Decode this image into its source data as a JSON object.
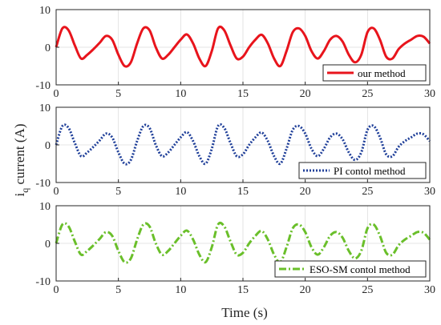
{
  "chart_data": {
    "type": "line",
    "xlabel": "Time (s)",
    "ylabel_prefix": "i",
    "ylabel_subscript": "q",
    "ylabel_suffix": " current (A)",
    "xlim": [
      0,
      30
    ],
    "ylim": [
      -10,
      10
    ],
    "xticks": [
      0,
      5,
      10,
      15,
      20,
      25,
      30
    ],
    "yticks": [
      -10,
      0,
      10
    ],
    "grid": true,
    "legend_placement": "bottom-right",
    "x": [
      0,
      0.5,
      1,
      1.5,
      2,
      2.5,
      3,
      3.5,
      4,
      4.5,
      5,
      5.5,
      6,
      6.5,
      7,
      7.5,
      8,
      8.5,
      9,
      9.5,
      10,
      10.5,
      11,
      11.5,
      12,
      12.5,
      13,
      13.5,
      14,
      14.5,
      15,
      15.5,
      16,
      16.5,
      17,
      17.5,
      18,
      18.5,
      19,
      19.5,
      20,
      20.5,
      21,
      21.5,
      22,
      22.5,
      23,
      23.5,
      24,
      24.5,
      25,
      25.5,
      26,
      26.5,
      27,
      27.5,
      28,
      28.5,
      29,
      29.5,
      30
    ],
    "series": [
      {
        "name": "our method",
        "color": "#e8141c",
        "style": "solid",
        "values": [
          0,
          5.0,
          4.5,
          0.5,
          -3.0,
          -2.0,
          -0.5,
          1.2,
          3.0,
          2.0,
          -2.0,
          -5.0,
          -4.0,
          1.0,
          5.0,
          4.5,
          0.0,
          -3.0,
          -2.0,
          0.0,
          2.0,
          3.4,
          1.0,
          -3.0,
          -5.0,
          -1.0,
          5.0,
          4.5,
          0.5,
          -3.0,
          -2.5,
          0.0,
          2.0,
          3.3,
          1.0,
          -3.0,
          -5.0,
          -1.0,
          4.0,
          5.0,
          3.0,
          -1.0,
          -3.0,
          -1.0,
          2.0,
          3.0,
          1.5,
          -2.0,
          -4.0,
          -2.0,
          4.0,
          5.0,
          2.0,
          -2.5,
          -3.0,
          -0.5,
          1.0,
          2.0,
          3.0,
          2.8,
          1.0
        ]
      },
      {
        "name": "PI contol method",
        "color": "#1f3f99",
        "style": "dotted",
        "values": [
          0,
          5.0,
          4.5,
          0.5,
          -3.0,
          -2.0,
          -0.5,
          1.2,
          3.0,
          2.0,
          -2.0,
          -5.0,
          -4.0,
          1.0,
          5.0,
          4.5,
          0.0,
          -3.0,
          -2.0,
          0.0,
          2.0,
          3.4,
          1.0,
          -3.0,
          -5.0,
          -1.0,
          5.0,
          4.5,
          0.5,
          -3.0,
          -2.5,
          0.0,
          2.0,
          3.3,
          1.0,
          -3.0,
          -5.0,
          -1.0,
          4.0,
          5.0,
          3.0,
          -1.0,
          -3.0,
          -1.0,
          2.0,
          3.0,
          1.5,
          -2.0,
          -4.0,
          -2.0,
          4.0,
          5.0,
          2.0,
          -2.5,
          -3.0,
          -0.5,
          1.0,
          2.0,
          3.0,
          2.8,
          1.0
        ]
      },
      {
        "name": "ESO-SM contol method",
        "color": "#6abf2a",
        "style": "dashdot",
        "values": [
          0,
          5.0,
          4.5,
          0.5,
          -3.0,
          -2.0,
          -0.5,
          1.2,
          3.0,
          2.0,
          -2.0,
          -5.0,
          -4.0,
          1.0,
          5.0,
          4.5,
          0.0,
          -3.0,
          -2.0,
          0.0,
          2.0,
          3.4,
          1.0,
          -3.0,
          -5.0,
          -1.0,
          5.0,
          4.5,
          0.5,
          -3.0,
          -2.5,
          0.0,
          2.0,
          3.3,
          1.0,
          -3.0,
          -5.0,
          -1.0,
          4.0,
          5.0,
          3.0,
          -1.0,
          -3.0,
          -1.0,
          2.0,
          3.0,
          1.5,
          -2.0,
          -4.0,
          -2.0,
          4.0,
          5.0,
          2.0,
          -2.5,
          -3.0,
          -0.5,
          1.0,
          2.0,
          3.0,
          2.8,
          1.0
        ]
      }
    ]
  }
}
